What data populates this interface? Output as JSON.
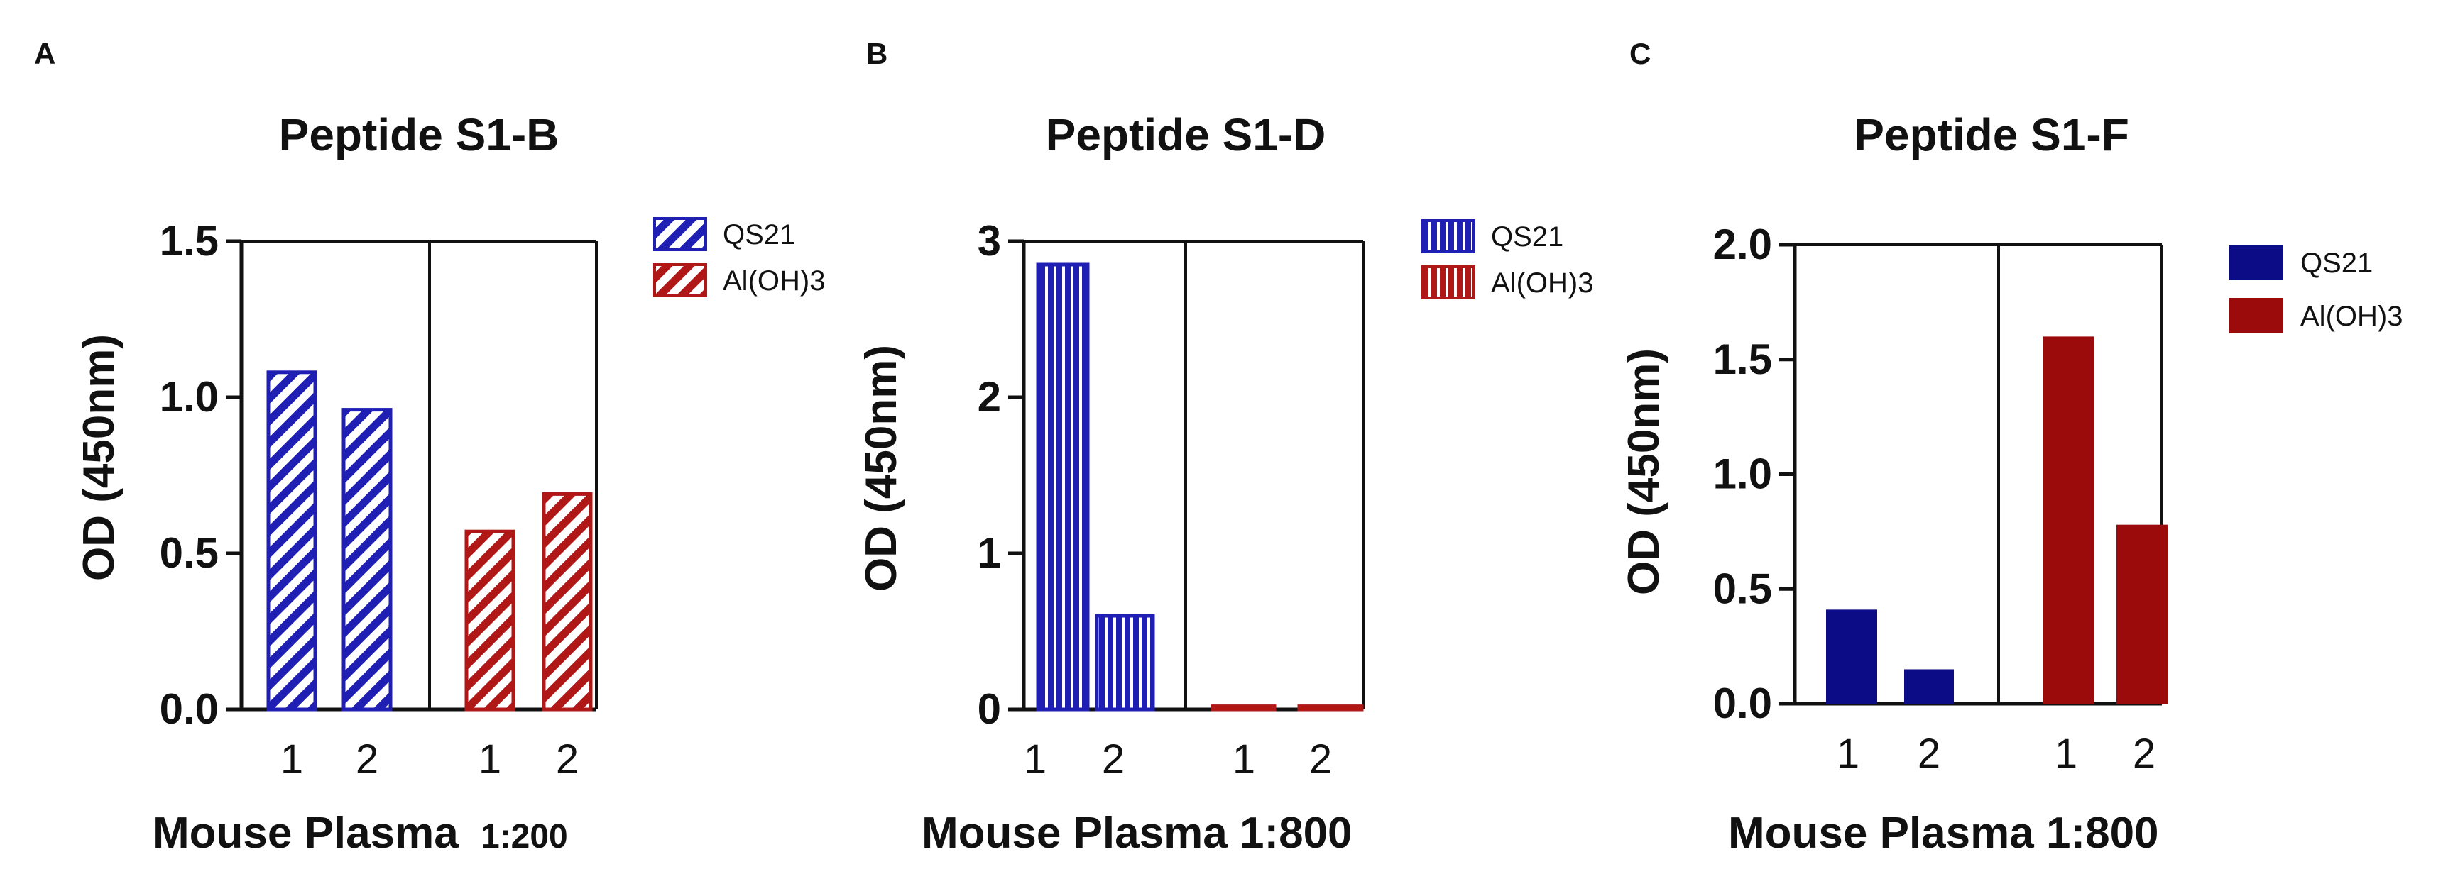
{
  "panels": [
    {
      "letter": "A",
      "chart_data": {
        "type": "bar",
        "title": "Peptide S1-B",
        "ylabel": "OD (450nm)",
        "xlabel": "Mouse Plasma",
        "dilution": "1:200",
        "ylim": [
          0,
          1.5
        ],
        "yticks": [
          "0.0",
          "0.5",
          "1.0",
          "1.5"
        ],
        "ytick_values": [
          0,
          0.5,
          1.0,
          1.5
        ],
        "fill": "diagonal-hatch",
        "groups": [
          {
            "name": "QS21",
            "color": "#1f1fb4",
            "categories": [
              "1",
              "2"
            ],
            "values": [
              1.08,
              0.96
            ]
          },
          {
            "name": "Al(OH)3",
            "color": "#b01818",
            "categories": [
              "1",
              "2"
            ],
            "values": [
              0.57,
              0.69
            ]
          }
        ],
        "legend": [
          "QS21",
          "Al(OH)3"
        ],
        "legend_position": "right"
      }
    },
    {
      "letter": "B",
      "chart_data": {
        "type": "bar",
        "title": "Peptide S1-D",
        "ylabel": "OD (450nm)",
        "xlabel": "Mouse Plasma 1:800",
        "dilution": "",
        "ylim": [
          0,
          3
        ],
        "yticks": [
          "0",
          "1",
          "2",
          "3"
        ],
        "ytick_values": [
          0,
          1,
          2,
          3
        ],
        "fill": "vertical-hatch",
        "groups": [
          {
            "name": "QS21",
            "color": "#1f1fb4",
            "categories": [
              "1",
              "2"
            ],
            "values": [
              2.85,
              0.6
            ]
          },
          {
            "name": "Al(OH)3",
            "color": "#b01818",
            "categories": [
              "1",
              "2"
            ],
            "values": [
              0.02,
              0.02
            ]
          }
        ],
        "legend": [
          "QS21",
          "Al(OH)3"
        ],
        "legend_position": "right"
      }
    },
    {
      "letter": "C",
      "chart_data": {
        "type": "bar",
        "title": "Peptide S1-F",
        "ylabel": "OD (450nm)",
        "xlabel": "Mouse Plasma 1:800",
        "dilution": "",
        "ylim": [
          0,
          2.0
        ],
        "yticks": [
          "0.0",
          "0.5",
          "1.0",
          "1.5",
          "2.0"
        ],
        "ytick_values": [
          0,
          0.5,
          1.0,
          1.5,
          2.0
        ],
        "fill": "solid",
        "groups": [
          {
            "name": "QS21",
            "color": "#0c0c86",
            "categories": [
              "1",
              "2"
            ],
            "values": [
              0.41,
              0.15
            ]
          },
          {
            "name": "Al(OH)3",
            "color": "#9c0b0b",
            "categories": [
              "1",
              "2"
            ],
            "values": [
              1.6,
              0.78
            ]
          }
        ],
        "legend": [
          "QS21",
          "Al(OH)3"
        ],
        "legend_position": "right"
      }
    }
  ]
}
